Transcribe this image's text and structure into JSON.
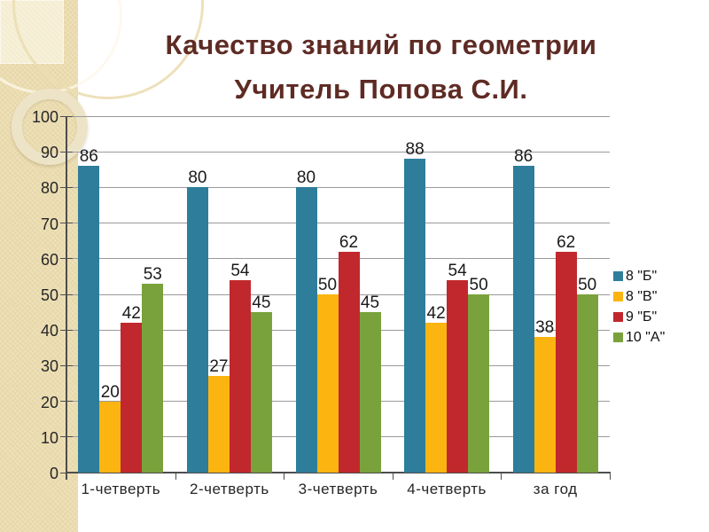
{
  "slide": {
    "title_line1": "Качество знаний по геометрии",
    "title_line2": "Учитель Попова С.И.",
    "title_color": "#5e2b24"
  },
  "chart_data": {
    "type": "bar",
    "title": "",
    "xlabel": "",
    "ylabel": "",
    "categories": [
      "1-четверть",
      "2-четверть",
      "3-четверть",
      "4-четверть",
      "за год"
    ],
    "series": [
      {
        "name": "8 \"Б\"",
        "color": "#2e7d9b",
        "values": [
          86,
          80,
          80,
          88,
          86
        ]
      },
      {
        "name": "8 \"В\"",
        "color": "#fbb410",
        "values": [
          20,
          27,
          50,
          42,
          38
        ]
      },
      {
        "name": "9 \"Б\"",
        "color": "#c1282d",
        "values": [
          42,
          54,
          62,
          54,
          62
        ]
      },
      {
        "name": "10 \"А\"",
        "color": "#7aa23c",
        "values": [
          53,
          45,
          45,
          50,
          50
        ]
      }
    ],
    "ylim": [
      0,
      100
    ],
    "ytick_step": 10,
    "grid": true,
    "data_labels": true,
    "legend_position": "right"
  }
}
